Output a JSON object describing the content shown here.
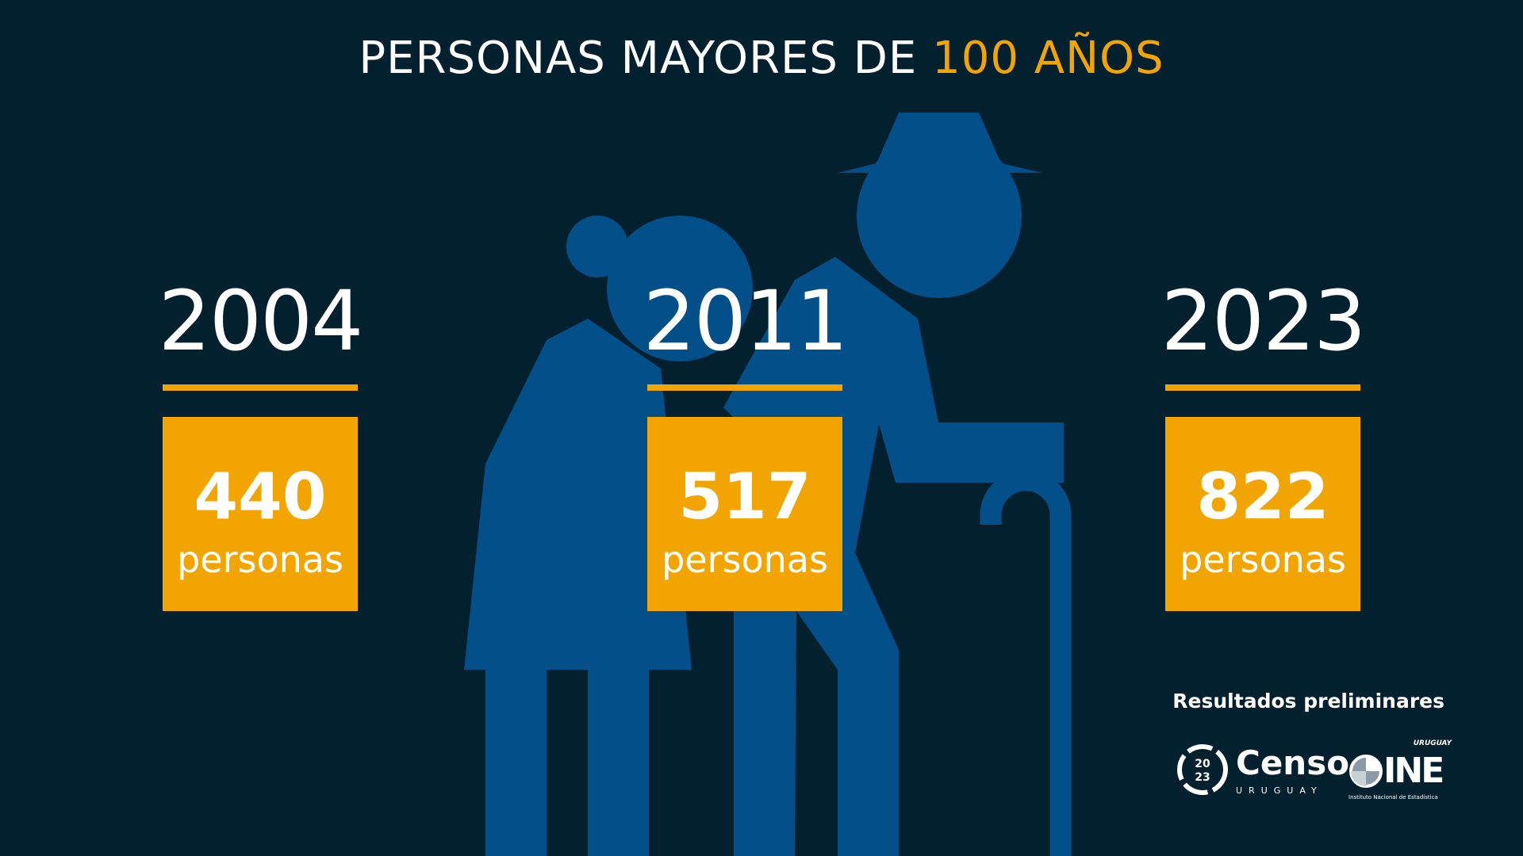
{
  "title": {
    "prefix": "PERSONAS MAYORES DE ",
    "highlight": "100 AÑOS"
  },
  "colors": {
    "background": "#03202f",
    "accent": "#f2a500",
    "silhouette": "#024f8a"
  },
  "stats": [
    {
      "year": "2004",
      "value": "440",
      "unit": "personas"
    },
    {
      "year": "2011",
      "value": "517",
      "unit": "personas"
    },
    {
      "year": "2023",
      "value": "822",
      "unit": "personas"
    }
  ],
  "footer": {
    "note": "Resultados preliminares",
    "censo_logo": {
      "numbers_top": "20",
      "numbers_bottom": "23",
      "name": "Censo",
      "country": "URUGUAY"
    },
    "ine_logo": {
      "country": "URUGUAY",
      "letters": "INE",
      "name": "Instituto Nacional de Estadística"
    }
  }
}
